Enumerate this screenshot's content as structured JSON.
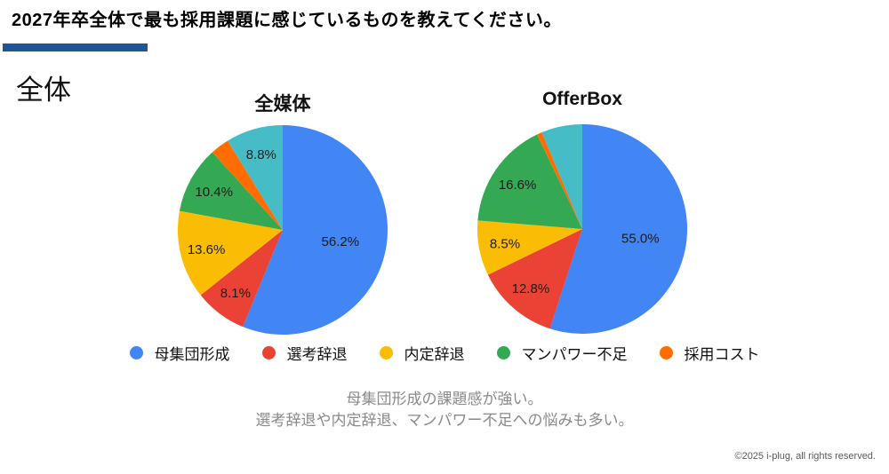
{
  "page": {
    "title": "2027年卒全体で最も採用課題に感じているものを教えてください。",
    "section_label": "全体",
    "accent_bar_color": "#1F5796",
    "summary_line1": "母集団形成の課題感が強い。",
    "summary_line2": "選考辞退や内定辞退、マンパワー不足への悩みも多い。",
    "copyright": "©2025 i-plug, all rights reserved."
  },
  "colors": {
    "blue": "#4285F4",
    "red": "#EA4335",
    "yellow": "#FBBC04",
    "green": "#34A853",
    "orange": "#FF6D01",
    "teal": "#46BDC6"
  },
  "legend": {
    "items": [
      {
        "label": "母集団形成",
        "color": "#4285F4"
      },
      {
        "label": "選考辞退",
        "color": "#EA4335"
      },
      {
        "label": "内定辞退",
        "color": "#FBBC04"
      },
      {
        "label": "マンパワー不足",
        "color": "#34A853"
      },
      {
        "label": "採用コスト",
        "color": "#FF6D01"
      }
    ]
  },
  "chart_data": [
    {
      "type": "pie",
      "title": "全媒体",
      "start_angle_deg": 0,
      "direction": "clockwise",
      "slices": [
        {
          "name": "母集団形成",
          "value": 56.2,
          "label": "56.2%",
          "color": "#4285F4"
        },
        {
          "name": "選考辞退",
          "value": 8.1,
          "label": "8.1%",
          "color": "#EA4335"
        },
        {
          "name": "内定辞退",
          "value": 13.6,
          "label": "13.6%",
          "color": "#FBBC04"
        },
        {
          "name": "マンパワー不足",
          "value": 10.4,
          "label": "10.4%",
          "color": "#34A853"
        },
        {
          "name": "採用コスト",
          "value": 2.9,
          "label": "",
          "color": "#FF6D01"
        },
        {
          "name": "",
          "value": 8.8,
          "label": "8.8%",
          "color": "#46BDC6"
        }
      ]
    },
    {
      "type": "pie",
      "title": "OfferBox",
      "start_angle_deg": 0,
      "direction": "clockwise",
      "slices": [
        {
          "name": "母集団形成",
          "value": 55.0,
          "label": "55.0%",
          "color": "#4285F4"
        },
        {
          "name": "選考辞退",
          "value": 12.8,
          "label": "12.8%",
          "color": "#EA4335"
        },
        {
          "name": "内定辞退",
          "value": 8.5,
          "label": "8.5%",
          "color": "#FBBC04"
        },
        {
          "name": "マンパワー不足",
          "value": 16.6,
          "label": "16.6%",
          "color": "#34A853"
        },
        {
          "name": "採用コスト",
          "value": 0.8,
          "label": "",
          "color": "#FF6D01"
        },
        {
          "name": "",
          "value": 6.3,
          "label": "",
          "color": "#46BDC6"
        }
      ]
    }
  ]
}
